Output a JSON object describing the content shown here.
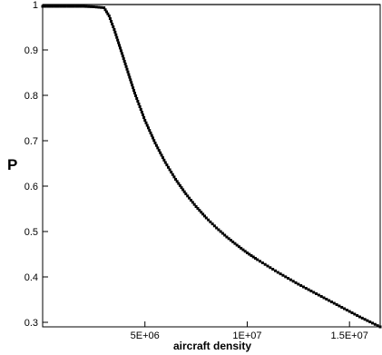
{
  "chart_data": {
    "type": "scatter",
    "title": "",
    "xlabel": "aircraft density",
    "ylabel": "P",
    "xlim": [
      0,
      16500000
    ],
    "ylim": [
      0.29,
      1.0
    ],
    "grid": false,
    "legend": "none",
    "reference_line": {
      "y": 1.0
    },
    "xticks": [
      {
        "value": 5000000,
        "label": "5E+06"
      },
      {
        "value": 10000000,
        "label": "1E+07"
      },
      {
        "value": 15000000,
        "label": "1.5E+07"
      }
    ],
    "yticks": [
      {
        "value": 0.3,
        "label": "0.3"
      },
      {
        "value": 0.4,
        "label": "0.4"
      },
      {
        "value": 0.5,
        "label": "0.5"
      },
      {
        "value": 0.6,
        "label": "0.6"
      },
      {
        "value": 0.7,
        "label": "0.7"
      },
      {
        "value": 0.8,
        "label": "0.8"
      },
      {
        "value": 0.9,
        "label": "0.9"
      },
      {
        "value": 1.0,
        "label": "1"
      }
    ],
    "series": [
      {
        "color": "#000000",
        "x": [
          0,
          500000,
          1000000,
          1500000,
          2000000,
          2500000,
          3000000,
          3250000,
          3500000,
          3750000,
          4000000,
          4250000,
          4500000,
          4750000,
          5000000,
          5500000,
          6000000,
          6500000,
          7000000,
          7500000,
          8000000,
          8500000,
          9000000,
          9500000,
          10000000,
          10500000,
          11000000,
          11500000,
          12000000,
          12500000,
          13000000,
          13500000,
          14000000,
          14500000,
          15000000,
          15500000,
          16000000,
          16500000
        ],
        "y": [
          0.996,
          0.996,
          0.996,
          0.996,
          0.996,
          0.995,
          0.993,
          0.975,
          0.945,
          0.91,
          0.875,
          0.84,
          0.805,
          0.775,
          0.745,
          0.695,
          0.652,
          0.615,
          0.583,
          0.555,
          0.53,
          0.508,
          0.488,
          0.47,
          0.453,
          0.438,
          0.424,
          0.41,
          0.397,
          0.384,
          0.372,
          0.36,
          0.348,
          0.336,
          0.324,
          0.312,
          0.301,
          0.29
        ]
      }
    ]
  }
}
